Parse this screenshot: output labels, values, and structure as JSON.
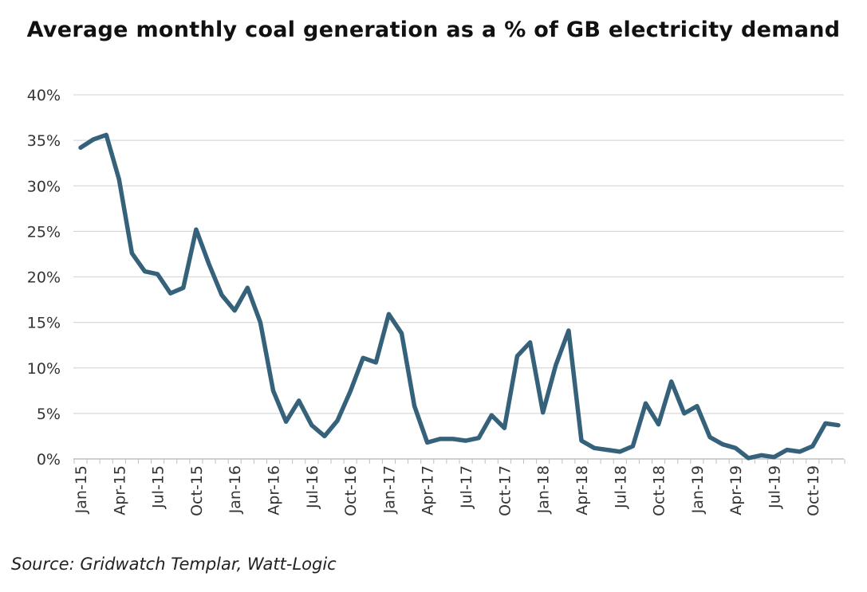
{
  "chart_data": {
    "type": "line",
    "title": "Average monthly coal generation as a % of GB electricity demand",
    "source": "Source: Gridwatch Templar, Watt-Logic",
    "ylim": [
      0,
      40
    ],
    "yticks": [
      {
        "value": 0,
        "label": "0%"
      },
      {
        "value": 5,
        "label": "5%"
      },
      {
        "value": 10,
        "label": "10%"
      },
      {
        "value": 15,
        "label": "15%"
      },
      {
        "value": 20,
        "label": "20%"
      },
      {
        "value": 25,
        "label": "25%"
      },
      {
        "value": 30,
        "label": "30%"
      },
      {
        "value": 35,
        "label": "35%"
      },
      {
        "value": 40,
        "label": "40%"
      }
    ],
    "xticks": [
      {
        "index": 0,
        "label": "Jan-15"
      },
      {
        "index": 3,
        "label": "Apr-15"
      },
      {
        "index": 6,
        "label": "Jul-15"
      },
      {
        "index": 9,
        "label": "Oct-15"
      },
      {
        "index": 12,
        "label": "Jan-16"
      },
      {
        "index": 15,
        "label": "Apr-16"
      },
      {
        "index": 18,
        "label": "Jul-16"
      },
      {
        "index": 21,
        "label": "Oct-16"
      },
      {
        "index": 24,
        "label": "Jan-17"
      },
      {
        "index": 27,
        "label": "Apr-17"
      },
      {
        "index": 30,
        "label": "Jul-17"
      },
      {
        "index": 33,
        "label": "Oct-17"
      },
      {
        "index": 36,
        "label": "Jan-18"
      },
      {
        "index": 39,
        "label": "Apr-18"
      },
      {
        "index": 42,
        "label": "Jul-18"
      },
      {
        "index": 45,
        "label": "Oct-18"
      },
      {
        "index": 48,
        "label": "Jan-19"
      },
      {
        "index": 51,
        "label": "Apr-19"
      },
      {
        "index": 54,
        "label": "Jul-19"
      },
      {
        "index": 57,
        "label": "Oct-19"
      }
    ],
    "grid": true,
    "line_color": "#35627a",
    "values": [
      34.2,
      35.1,
      35.6,
      30.7,
      22.6,
      20.6,
      20.3,
      18.2,
      18.8,
      25.2,
      21.4,
      18.0,
      16.3,
      18.8,
      15.0,
      7.5,
      4.1,
      6.4,
      3.7,
      2.5,
      4.2,
      7.4,
      11.1,
      10.6,
      15.9,
      13.8,
      5.8,
      1.8,
      2.2,
      2.2,
      2.0,
      2.3,
      4.8,
      3.4,
      11.3,
      12.8,
      5.1,
      10.3,
      14.1,
      2.0,
      1.2,
      1.0,
      0.8,
      1.4,
      6.1,
      3.8,
      8.5,
      5.0,
      5.8,
      2.4,
      1.6,
      1.2,
      0.1,
      0.4,
      0.2,
      1.0,
      0.8,
      1.4,
      3.9,
      3.7
    ]
  }
}
